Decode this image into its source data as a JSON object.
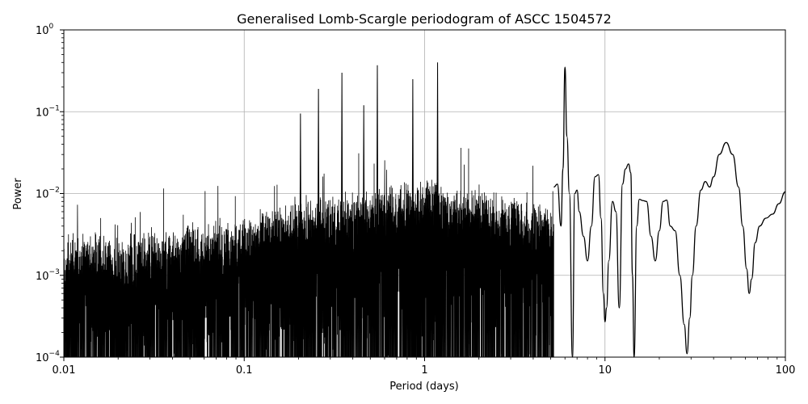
{
  "chart_data": {
    "type": "line",
    "title": "Generalised Lomb-Scargle periodogram of ASCC 1504572",
    "xlabel": "Period (days)",
    "ylabel": "Power",
    "xscale": "log",
    "yscale": "log",
    "xlim": [
      0.01,
      100
    ],
    "ylim": [
      0.0001,
      1
    ],
    "grid": true,
    "x_ticks": [
      {
        "value": 0.01,
        "label": "0.01"
      },
      {
        "value": 0.1,
        "label": "0.1"
      },
      {
        "value": 1,
        "label": "1"
      },
      {
        "value": 10,
        "label": "10"
      },
      {
        "value": 100,
        "label": "100"
      }
    ],
    "y_ticks": [
      {
        "value": 0.0001,
        "base": "10",
        "exp": "−4"
      },
      {
        "value": 0.001,
        "base": "10",
        "exp": "−3"
      },
      {
        "value": 0.01,
        "base": "10",
        "exp": "−2"
      },
      {
        "value": 0.1,
        "base": "10",
        "exp": "−1"
      },
      {
        "value": 1,
        "base": "10",
        "exp": "0"
      }
    ],
    "series": [
      {
        "color": "#000000",
        "peaks": [
          {
            "period": 0.205,
            "power": 0.095
          },
          {
            "period": 0.258,
            "power": 0.19
          },
          {
            "period": 0.348,
            "power": 0.3
          },
          {
            "period": 0.46,
            "power": 0.12
          },
          {
            "period": 0.547,
            "power": 0.37
          },
          {
            "period": 0.86,
            "power": 0.25
          },
          {
            "period": 1.18,
            "power": 0.4
          },
          {
            "period": 6.0,
            "power": 0.35
          },
          {
            "period": 13.5,
            "power": 0.023
          },
          {
            "period": 47.0,
            "power": 0.042
          }
        ],
        "smooth_segment": {
          "x": [
            5.2,
            5.45,
            5.7,
            5.85,
            6.0,
            6.15,
            6.35,
            6.6,
            6.8,
            7.0,
            7.2,
            7.6,
            8.0,
            8.4,
            8.8,
            9.2,
            9.5,
            9.8,
            10.0,
            10.2,
            10.5,
            11.0,
            11.5,
            12.0,
            12.5,
            13.0,
            13.5,
            13.9,
            14.2,
            14.5,
            15.0,
            15.5,
            16.2,
            17.0,
            18.0,
            19.0,
            20.0,
            21.0,
            22.0,
            23.0,
            24.5,
            26.0,
            27.5,
            28.5,
            29.5,
            30.5,
            32.0,
            34.0,
            36.0,
            38.0,
            40.0,
            43.0,
            47.0,
            51.0,
            55.0,
            58.0,
            61.0,
            63.0,
            65.0,
            68.0,
            72.0,
            78.0,
            85.0,
            92.0,
            100.0
          ],
          "y": [
            0.012,
            0.013,
            0.004,
            0.02,
            0.35,
            0.05,
            0.01,
            0.0001,
            0.01,
            0.011,
            0.006,
            0.003,
            0.0015,
            0.004,
            0.016,
            0.017,
            0.005,
            0.0006,
            0.00027,
            0.0004,
            0.0015,
            0.008,
            0.006,
            0.0004,
            0.013,
            0.02,
            0.023,
            0.018,
            0.001,
            0.0001,
            0.004,
            0.0085,
            0.0082,
            0.008,
            0.003,
            0.0015,
            0.0035,
            0.008,
            0.0083,
            0.004,
            0.0035,
            0.001,
            0.00025,
            0.00011,
            0.0003,
            0.001,
            0.004,
            0.011,
            0.014,
            0.012,
            0.016,
            0.03,
            0.042,
            0.03,
            0.012,
            0.004,
            0.0012,
            0.0006,
            0.0009,
            0.0025,
            0.004,
            0.005,
            0.0056,
            0.0075,
            0.0105
          ]
        }
      }
    ]
  }
}
